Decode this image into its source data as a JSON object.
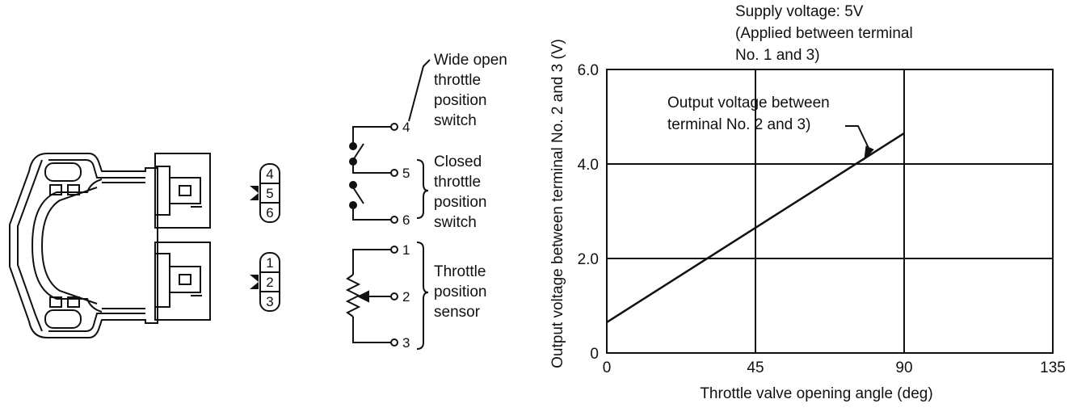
{
  "connector": {
    "upper_pins": [
      "4",
      "5",
      "6"
    ],
    "lower_pins": [
      "1",
      "2",
      "3"
    ]
  },
  "schematic": {
    "terminals": [
      "4",
      "5",
      "6",
      "1",
      "2",
      "3"
    ],
    "wot_switch_label": [
      "Wide open",
      "throttle",
      "position",
      "switch"
    ],
    "closed_switch_label": [
      "Closed",
      "throttle",
      "position",
      "switch"
    ],
    "sensor_label": [
      "Throttle",
      "position",
      "sensor"
    ]
  },
  "chart_data": {
    "type": "line",
    "title": "",
    "note": [
      "Supply voltage: 5V",
      "(Applied between terminal",
      "No. 1 and 3)"
    ],
    "xlabel": "Throttle valve opening angle (deg)",
    "ylabel": "Output voltage between terminal No. 2 and 3 (V)",
    "xlim": [
      0,
      135
    ],
    "ylim": [
      0,
      6.0
    ],
    "x_ticks": [
      0,
      45,
      90,
      135
    ],
    "x_tick_labels": [
      "0",
      "45",
      "90",
      "135"
    ],
    "y_ticks": [
      0,
      2.0,
      4.0,
      6.0
    ],
    "y_tick_labels": [
      "0",
      "2.0",
      "4.0",
      "6.0"
    ],
    "grid": true,
    "series": [
      {
        "x": [
          0,
          90
        ],
        "y": [
          0.65,
          4.65
        ]
      }
    ],
    "annotations": [
      {
        "text": [
          "Output voltage between",
          "terminal No. 2 and 3)"
        ],
        "x": 78,
        "y": 4.1
      }
    ]
  }
}
